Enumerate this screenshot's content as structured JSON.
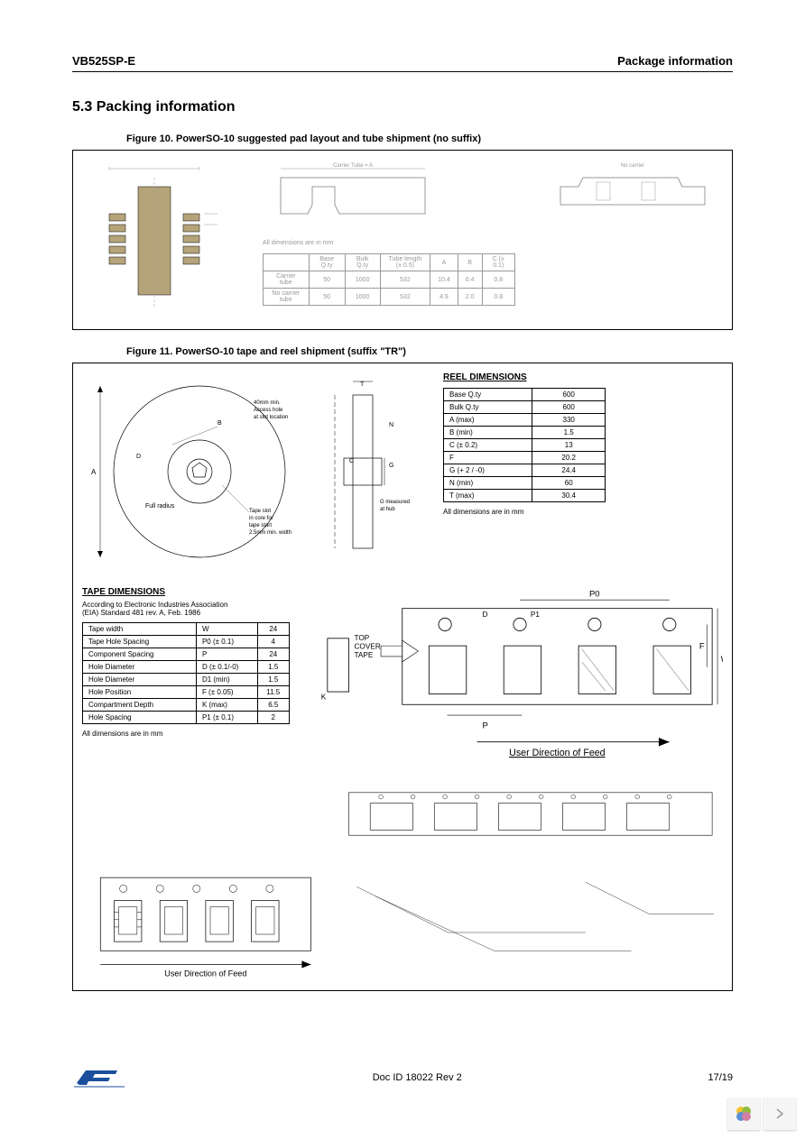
{
  "header": {
    "product": "VB525SP-E",
    "section": "Package information"
  },
  "section_title": "5.3 Packing information",
  "figure10": {
    "caption": "Figure 10. PowerSO-10 suggested pad layout and tube shipment (no suffix)",
    "pad_color": "#b5a47a",
    "note": "All dimensions are in mm",
    "table": {
      "headers": [
        "",
        "Base Q.ty",
        "Bulk Q.ty",
        "Tube length (± 0.5)",
        "A",
        "B",
        "C (± 0.1)"
      ],
      "rows": [
        [
          "Carrier tube",
          "50",
          "1000",
          "532",
          "10.4",
          "0.4",
          "0.8"
        ],
        [
          "No carrier tube",
          "50",
          "1000",
          "532",
          "4.9",
          "2.0",
          "0.8"
        ]
      ]
    }
  },
  "figure11": {
    "caption": "Figure 11. PowerSO-10 tape and reel shipment (suffix \"TR\")",
    "reel": {
      "title": "REEL DIMENSIONS",
      "rows": [
        [
          "Base Q.ty",
          "600"
        ],
        [
          "Bulk Q.ty",
          "600"
        ],
        [
          "A (max)",
          "330"
        ],
        [
          "B (min)",
          "1.5"
        ],
        [
          "C (± 0.2)",
          "13"
        ],
        [
          "F",
          "20.2"
        ],
        [
          "G (+ 2 / -0)",
          "24.4"
        ],
        [
          "N (min)",
          "60"
        ],
        [
          "T (max)",
          "30.4"
        ]
      ],
      "note": "All dimensions are in mm",
      "labels": {
        "access_hole": "40mm min.\nAccess hole\nat slot location",
        "full_radius": "Full radius",
        "tape_slot": "Tape slot\nin core for\ntape start\n2.5mm min. width",
        "g_measured": "G measured\nat hub"
      }
    },
    "tape": {
      "title": "TAPE DIMENSIONS",
      "subtitle": "According to Electronic Industries Association\n(EIA) Standard 481 rev. A, Feb. 1986",
      "rows": [
        [
          "Tape width",
          "W",
          "24"
        ],
        [
          "Tape Hole Spacing",
          "P0 (± 0.1)",
          "4"
        ],
        [
          "Component Spacing",
          "P",
          "24"
        ],
        [
          "Hole Diameter",
          "D (± 0.1/-0)",
          "1.5"
        ],
        [
          "Hole Diameter",
          "D1 (min)",
          "1.5"
        ],
        [
          "Hole Position",
          "F (± 0.05)",
          "11.5"
        ],
        [
          "Compartment Depth",
          "K (max)",
          "6.5"
        ],
        [
          "Hole Spacing",
          "P1 (± 0.1)",
          "2"
        ]
      ],
      "note": "All dimensions are in mm",
      "labels": {
        "top_cover": "TOP\nCOVER\nTAPE",
        "user_dir": "User Direction of Feed"
      }
    }
  },
  "footer": {
    "doc_id": "Doc ID 18022 Rev 2",
    "page": "17/19"
  },
  "colors": {
    "line": "#000000",
    "light": "#cccccc",
    "pad": "#b5a47a",
    "blue": "#1b4f9c"
  }
}
